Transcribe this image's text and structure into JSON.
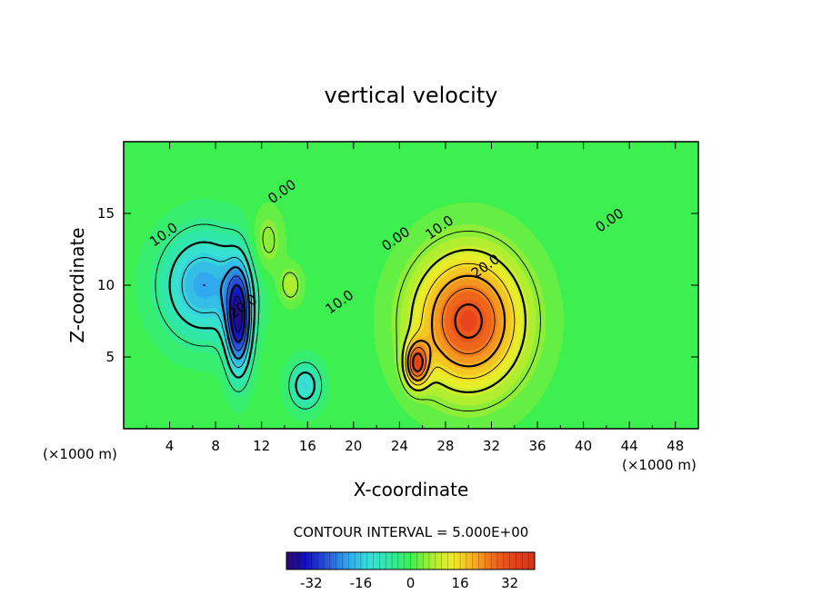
{
  "chart_data": {
    "type": "heatmap",
    "title": "vertical velocity",
    "xlabel": "X-coordinate",
    "ylabel": "Z-coordinate",
    "x_unit_left": "(×1000 m)",
    "x_unit_right": "(×1000 m)",
    "xlim": [
      0,
      50
    ],
    "ylim": [
      0,
      20
    ],
    "x_ticks": [
      "4",
      "8",
      "12",
      "16",
      "20",
      "24",
      "28",
      "32",
      "36",
      "40",
      "44",
      "48"
    ],
    "x_tick_values": [
      4,
      8,
      12,
      16,
      20,
      24,
      28,
      32,
      36,
      40,
      44,
      48
    ],
    "y_ticks": [
      "5",
      "10",
      "15"
    ],
    "y_tick_values": [
      5,
      10,
      15
    ],
    "contour_interval_text": "CONTOUR INTERVAL = 5.000E+00",
    "contour_interval": 5.0,
    "color_range": [
      -40,
      40
    ],
    "colorbar_ticks": [
      "-32",
      "-16",
      "0",
      "16",
      "32"
    ],
    "colorbar_tick_values": [
      -32,
      -16,
      0,
      16,
      32
    ],
    "colormap_stops": [
      "#2a0a6a",
      "#1010c8",
      "#2a5ad6",
      "#31a9ee",
      "#38e0d8",
      "#2ee8a0",
      "#3cf050",
      "#a8ee30",
      "#f0ee28",
      "#f8b020",
      "#f06a1c",
      "#e8401a",
      "#d43418"
    ],
    "features": [
      {
        "kind": "updraft",
        "x": 30.0,
        "z": 7.5,
        "value": 32
      },
      {
        "kind": "updraft",
        "x": 25.5,
        "z": 4.5,
        "value": 26
      },
      {
        "kind": "downdraft",
        "x": 10.0,
        "z": 7.5,
        "value": -32
      },
      {
        "kind": "downdraft",
        "x": 7.0,
        "z": 10.0,
        "value": -20
      },
      {
        "kind": "downdraft",
        "x": 15.8,
        "z": 3.0,
        "value": -14
      },
      {
        "kind": "updraft",
        "x": 14.5,
        "z": 10.0,
        "value": 8
      },
      {
        "kind": "updraft",
        "x": 12.5,
        "z": 13.0,
        "value": 7
      }
    ],
    "contour_labels": [
      {
        "text": "0.00",
        "x": 13.8,
        "z": 16.5
      },
      {
        "text": "10.0",
        "x": 3.5,
        "z": 13.5
      },
      {
        "text": "20.0",
        "x": 10.4,
        "z": 8.5
      },
      {
        "text": "10.0",
        "x": 18.8,
        "z": 8.8
      },
      {
        "text": "0.00",
        "x": 23.7,
        "z": 13.2
      },
      {
        "text": "10.0",
        "x": 27.5,
        "z": 14.0
      },
      {
        "text": "20.0",
        "x": 31.5,
        "z": 11.3
      },
      {
        "text": "0.00",
        "x": 42.3,
        "z": 14.5
      }
    ]
  }
}
